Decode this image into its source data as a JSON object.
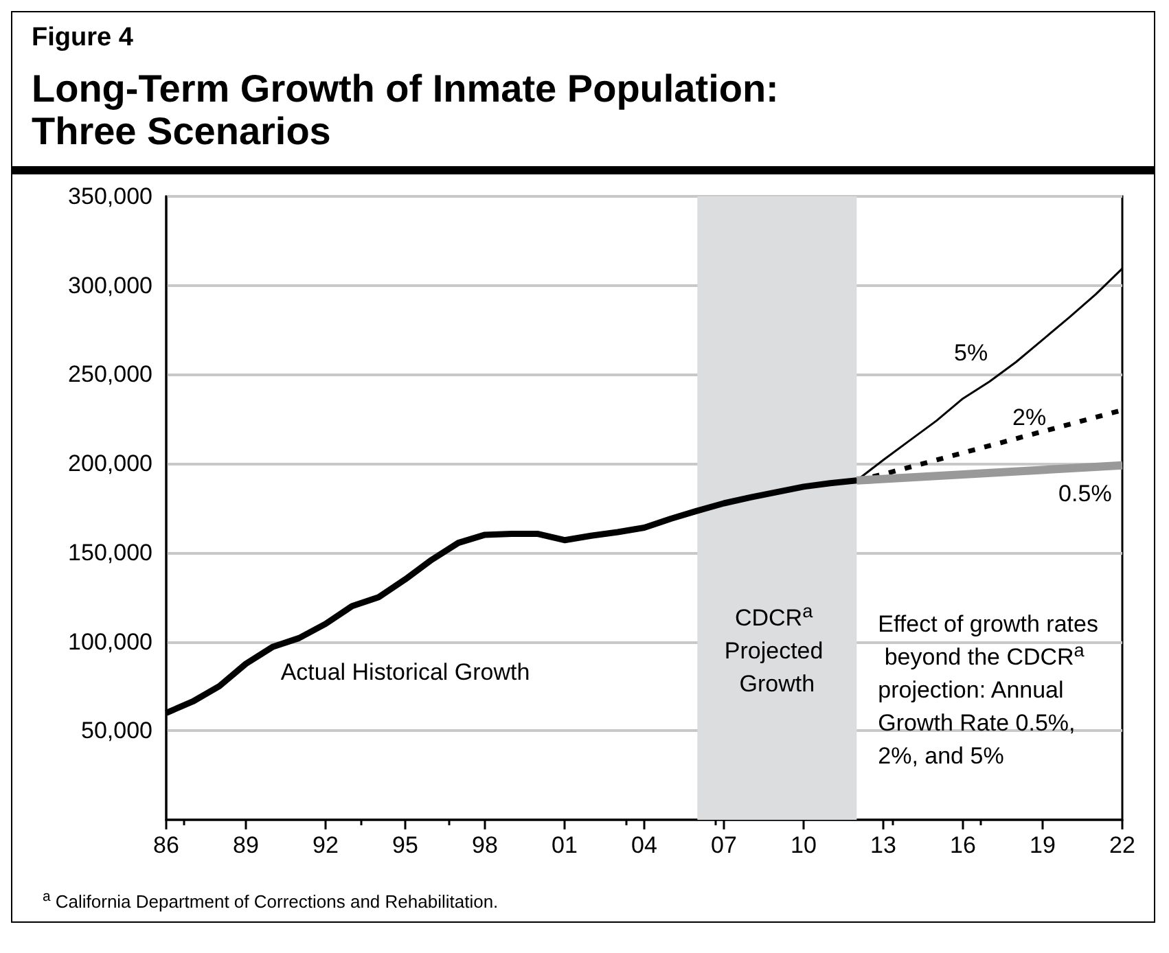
{
  "chart_data": {
    "type": "line",
    "subtitle": "Figure 4",
    "title": "Long-Term Growth of Inmate Population: Three Scenarios",
    "xlim": [
      1986,
      2022
    ],
    "xticks": [
      {
        "value": 1986,
        "label": "86"
      },
      {
        "value": 1989,
        "label": "89"
      },
      {
        "value": 1992,
        "label": "92"
      },
      {
        "value": 1995,
        "label": "95"
      },
      {
        "value": 1998,
        "label": "98"
      },
      {
        "value": 2001,
        "label": "01"
      },
      {
        "value": 2004,
        "label": "04"
      },
      {
        "value": 2007,
        "label": "07"
      },
      {
        "value": 2010,
        "label": "10"
      },
      {
        "value": 2013,
        "label": "13"
      },
      {
        "value": 2016,
        "label": "16"
      },
      {
        "value": 2019,
        "label": "19"
      },
      {
        "value": 2022,
        "label": "22"
      }
    ],
    "ylim": [
      0,
      350000
    ],
    "yticks": [
      {
        "value": 50000,
        "label": "50,000"
      },
      {
        "value": 100000,
        "label": "100,000"
      },
      {
        "value": 150000,
        "label": "150,000"
      },
      {
        "value": 200000,
        "label": "200,000"
      },
      {
        "value": 250000,
        "label": "250,000"
      },
      {
        "value": 300000,
        "label": "300,000"
      },
      {
        "value": 350000,
        "label": "350,000"
      }
    ],
    "grid": "y",
    "legend": false,
    "marker": "none",
    "bands": [
      {
        "axis": "x",
        "from": 2006,
        "to": 2012,
        "label": "CDCR$^{a}$ Projected Growth",
        "color": "#dcdddf"
      }
    ],
    "series": [
      {
        "color": "#000000",
        "line_style": "solid",
        "x": [
          1986,
          1987,
          1988,
          1989,
          1990,
          1991,
          1992,
          1993,
          1994,
          1995,
          1996,
          1997,
          1998,
          1999,
          2000,
          2001,
          2002,
          2003,
          2004,
          2005,
          2006,
          2007,
          2008,
          2009,
          2010,
          2011,
          2012
        ],
        "values": [
          60000,
          66400,
          75000,
          87600,
          97000,
          102000,
          110000,
          120000,
          125000,
          135000,
          146000,
          155500,
          160000,
          160500,
          160500,
          157000,
          159500,
          161500,
          164000,
          169000,
          173500,
          177700,
          181000,
          184000,
          187000,
          189000,
          190500
        ]
      },
      {
        "name": "5%",
        "color": "#000000",
        "line_style": "solid",
        "x": [
          2012,
          2013,
          2014,
          2015,
          2016,
          2017,
          2018,
          2019,
          2020,
          2021,
          2022
        ],
        "values": [
          190500,
          202000,
          213000,
          224000,
          236500,
          246000,
          257000,
          269500,
          282000,
          295000,
          309500
        ]
      },
      {
        "name": "2%",
        "color": "#000000",
        "line_style": "dashed",
        "x": [
          2012,
          2013,
          2014,
          2015,
          2016,
          2017,
          2018,
          2019,
          2020,
          2021,
          2022
        ],
        "values": [
          190500,
          194000,
          198000,
          202000,
          206000,
          210000,
          214000,
          218000,
          222000,
          226000,
          230000
        ]
      },
      {
        "name": "0.5%",
        "color": "#999999",
        "line_style": "solid",
        "x": [
          2012,
          2022
        ],
        "values": [
          190500,
          199000
        ]
      }
    ],
    "annotations": [
      "Actual Historical Growth",
      "Effect of growth rates beyond the CDCR$^{a}$ projection: Annual Growth Rate 0.5%, 2%, and 5%",
      "$^{a}$ California Department of Corrections and Rehabilitation."
    ]
  }
}
